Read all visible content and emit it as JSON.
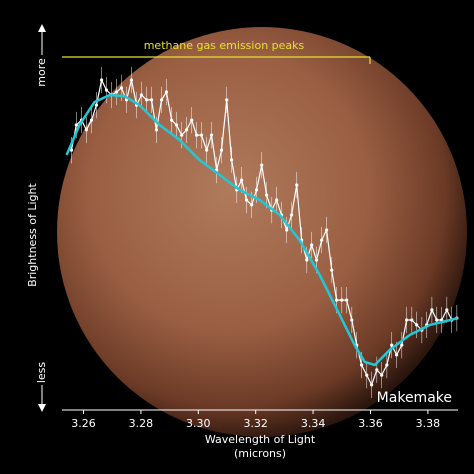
{
  "chart_data": {
    "type": "line",
    "title": "methane gas emission peaks",
    "label": "Makemake",
    "xlabel": [
      "Wavelength of Light",
      "(microns)"
    ],
    "ylabel": "Brightness of Light",
    "xlim": [
      3.2525,
      3.3905
    ],
    "xticks": [
      3.26,
      3.28,
      {
        "value": 3.3,
        "label": "3.30"
      },
      3.32,
      3.34,
      3.36,
      3.38
    ],
    "ylim": [
      0,
      1
    ],
    "yticks": [
      {
        "value": 0.9,
        "label": "more"
      },
      {
        "value": 0.1,
        "label": "less"
      }
    ],
    "series": [
      {
        "color": "#ffffff",
        "markers": true,
        "x": [
          3.2558,
          3.2575,
          3.2593,
          3.261,
          3.2628,
          3.2645,
          3.2663,
          3.268,
          3.2698,
          3.2715,
          3.2732,
          3.275,
          3.2767,
          3.2785,
          3.2802,
          3.282,
          3.2837,
          3.2854,
          3.2872,
          3.2889,
          3.2907,
          3.2924,
          3.2942,
          3.2959,
          3.2977,
          3.2994,
          3.3011,
          3.3029,
          3.3046,
          3.3064,
          3.3081,
          3.3099,
          3.3116,
          3.3134,
          3.3151,
          3.3168,
          3.3186,
          3.3203,
          3.3221,
          3.3238,
          3.3256,
          3.3273,
          3.329,
          3.3308,
          3.3325,
          3.3343,
          3.336,
          3.3378,
          3.3395,
          3.3412,
          3.343,
          3.3447,
          3.3465,
          3.3482,
          3.35,
          3.3517,
          3.3535,
          3.3552,
          3.3569,
          3.3587,
          3.3604,
          3.3622,
          3.3639,
          3.3657,
          3.3674,
          3.3691,
          3.3709,
          3.3726,
          3.3744,
          3.3761,
          3.3779,
          3.3796,
          3.3814,
          3.3831,
          3.3848,
          3.3866,
          3.3883,
          3.3901
        ],
        "values": [
          0.693,
          0.76,
          0.773,
          0.747,
          0.773,
          0.813,
          0.88,
          0.853,
          0.84,
          0.848,
          0.859,
          0.827,
          0.88,
          0.813,
          0.84,
          0.827,
          0.827,
          0.747,
          0.827,
          0.848,
          0.773,
          0.76,
          0.733,
          0.747,
          0.773,
          0.733,
          0.733,
          0.693,
          0.733,
          0.64,
          0.693,
          0.827,
          0.667,
          0.587,
          0.613,
          0.56,
          0.547,
          0.587,
          0.653,
          0.573,
          0.533,
          0.56,
          0.52,
          0.48,
          0.52,
          0.6,
          0.453,
          0.4,
          0.44,
          0.4,
          0.453,
          0.48,
          0.373,
          0.293,
          0.293,
          0.293,
          0.24,
          0.173,
          0.12,
          0.093,
          0.067,
          0.107,
          0.093,
          0.12,
          0.173,
          0.147,
          0.173,
          0.24,
          0.24,
          0.227,
          0.213,
          0.227,
          0.267,
          0.24,
          0.24,
          0.267,
          0.24,
          0.245
        ],
        "errors": [
          0.035,
          0.035,
          0.035,
          0.035,
          0.035,
          0.035,
          0.035,
          0.035,
          0.035,
          0.035,
          0.035,
          0.035,
          0.035,
          0.035,
          0.035,
          0.035,
          0.035,
          0.035,
          0.035,
          0.035,
          0.035,
          0.035,
          0.035,
          0.035,
          0.035,
          0.035,
          0.035,
          0.035,
          0.035,
          0.035,
          0.035,
          0.035,
          0.035,
          0.035,
          0.035,
          0.035,
          0.035,
          0.035,
          0.035,
          0.035,
          0.035,
          0.035,
          0.035,
          0.035,
          0.035,
          0.035,
          0.035,
          0.035,
          0.035,
          0.035,
          0.035,
          0.035,
          0.035,
          0.035,
          0.035,
          0.035,
          0.035,
          0.035,
          0.035,
          0.035,
          0.035,
          0.035,
          0.035,
          0.035,
          0.035,
          0.035,
          0.035,
          0.035,
          0.035,
          0.035,
          0.035,
          0.035,
          0.035,
          0.035,
          0.035,
          0.035,
          0.035,
          0.035
        ]
      },
      {
        "color": "#22c7d6",
        "markers": false,
        "x": [
          3.2541,
          3.2586,
          3.2638,
          3.2691,
          3.2743,
          3.2795,
          3.2865,
          3.2935,
          3.3004,
          3.3074,
          3.3144,
          3.3214,
          3.3284,
          3.3353,
          3.3423,
          3.3493,
          3.3545,
          3.358,
          3.3615,
          3.3667,
          3.3737,
          3.3807,
          3.3904
        ],
        "values": [
          0.68,
          0.76,
          0.821,
          0.84,
          0.837,
          0.813,
          0.76,
          0.72,
          0.667,
          0.627,
          0.587,
          0.56,
          0.52,
          0.453,
          0.36,
          0.253,
          0.173,
          0.128,
          0.12,
          0.16,
          0.2,
          0.227,
          0.245
        ]
      }
    ]
  }
}
